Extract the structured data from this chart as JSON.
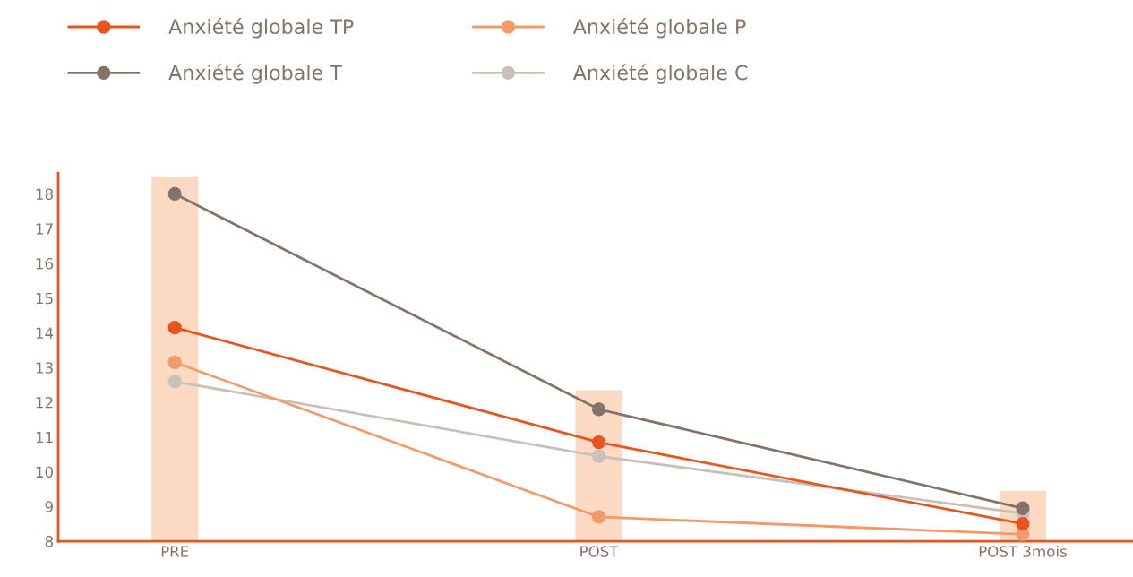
{
  "chart_data": {
    "type": "line",
    "categories": [
      "PRE",
      "POST",
      "POST 3mois"
    ],
    "series": [
      {
        "type": "bar",
        "color": "#fcd9c2",
        "values": [
          18.5,
          12.35,
          9.45
        ]
      },
      {
        "name": "Anxiété globale TP",
        "color": "#e8541e",
        "values": [
          14.15,
          10.85,
          8.5
        ]
      },
      {
        "name": "Anxiété globale P",
        "color": "#f29a6b",
        "values": [
          13.15,
          8.7,
          8.2
        ]
      },
      {
        "name": "Anxiété globale T",
        "color": "#857369",
        "values": [
          18,
          11.8,
          8.95
        ]
      },
      {
        "name": "Anxiété globale C",
        "color": "#cbc0b9",
        "values": [
          12.6,
          10.45,
          8.8
        ]
      }
    ],
    "ylim": [
      8,
      18.6
    ],
    "yticks": [
      8,
      9,
      10,
      11,
      12,
      13,
      14,
      15,
      16,
      17,
      18
    ],
    "grid": false,
    "legend": "top left",
    "marker": "circle",
    "line_style": "solid"
  }
}
